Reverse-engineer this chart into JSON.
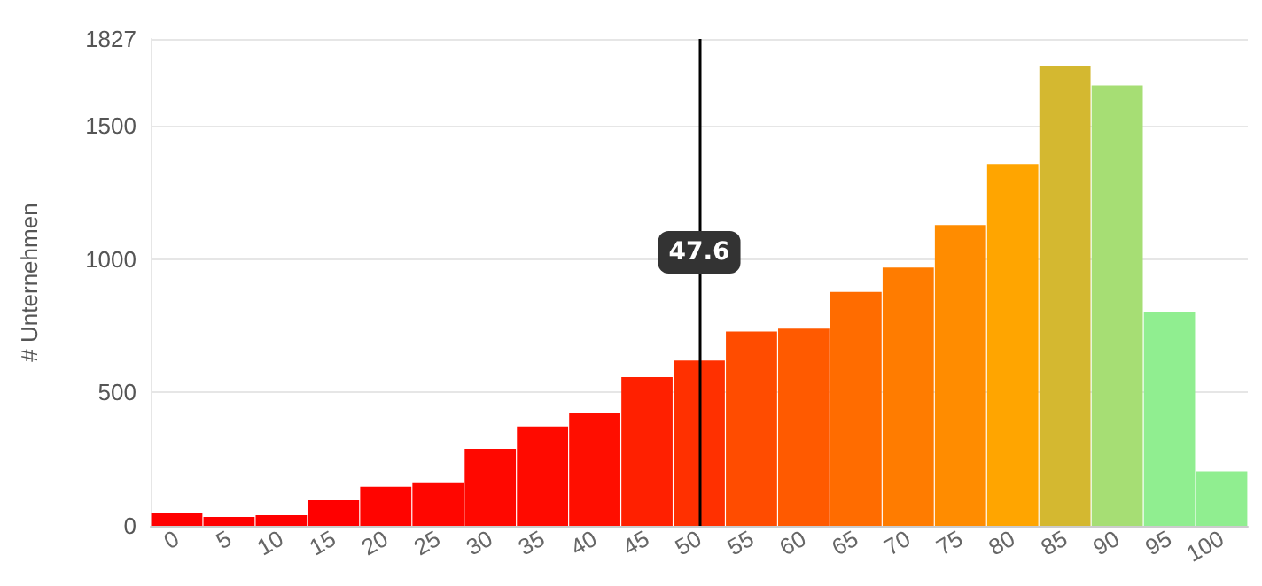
{
  "chart_data": {
    "type": "bar",
    "ylabel": "# Unternehmen",
    "categories": [
      "0",
      "5",
      "10",
      "15",
      "20",
      "25",
      "30",
      "35",
      "40",
      "45",
      "50",
      "55",
      "60",
      "65",
      "70",
      "75",
      "80",
      "85",
      "90",
      "95",
      "100"
    ],
    "values": [
      47,
      33,
      40,
      96,
      147,
      160,
      289,
      373,
      422,
      558,
      620,
      729,
      740,
      878,
      969,
      1129,
      1358,
      1727,
      1653,
      802,
      204
    ],
    "colors": [
      "#ff0000",
      "#ff0000",
      "#ff0000",
      "#ff0000",
      "#ff0400",
      "#ff0600",
      "#ff0800",
      "#ff0a00",
      "#ff0e00",
      "#ff2000",
      "#ff3000",
      "#ff4c00",
      "#ff5a00",
      "#ff6c00",
      "#ff7c00",
      "#ff8c00",
      "#ffa500",
      "#d4b830",
      "#a6de74",
      "#90ee90",
      "#90ee90"
    ],
    "ylim": [
      0,
      1827
    ],
    "yticks": [
      0,
      500,
      1000,
      1500,
      1827
    ],
    "grid": "y",
    "ref_lines": [
      {
        "axis": "x",
        "value": "50",
        "label": "47.6",
        "color": "#000000"
      }
    ]
  }
}
